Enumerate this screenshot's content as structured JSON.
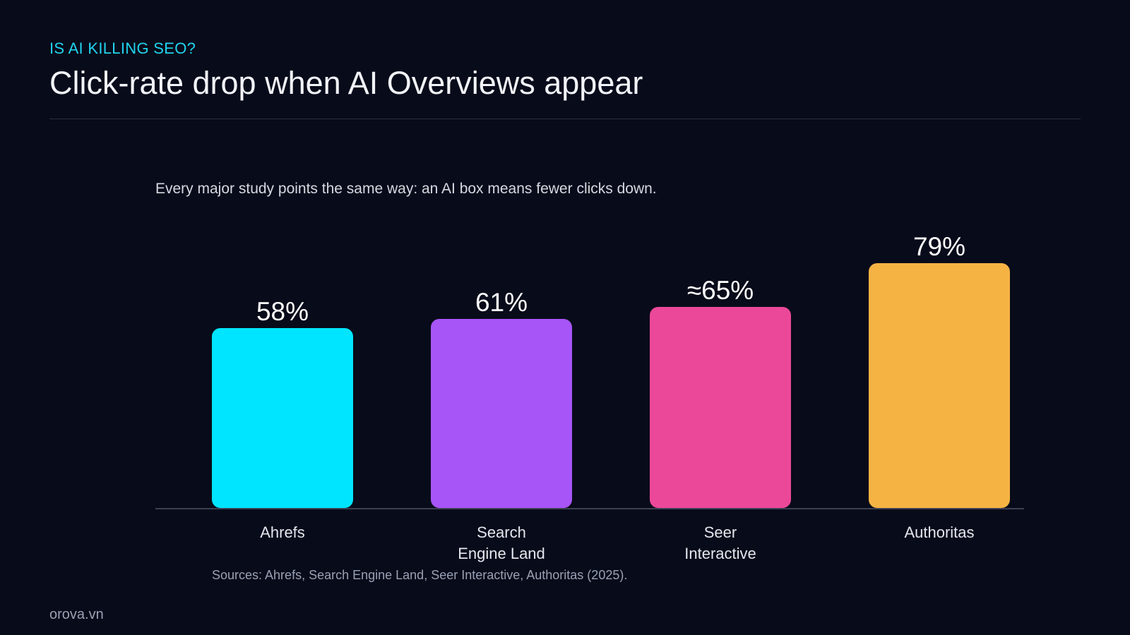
{
  "kicker": "IS AI KILLING SEO?",
  "title": "Click-rate drop when AI Overviews appear",
  "chart_data": {
    "type": "bar",
    "subtitle": "Every major study points the same way: an AI box means fewer clicks down.",
    "categories": [
      "Ahrefs",
      "Search\nEngine Land",
      "Seer\nInteractive",
      "Authoritas"
    ],
    "values": [
      58,
      61,
      65,
      79
    ],
    "value_labels": [
      "58%",
      "61%",
      "≈65%",
      "79%"
    ],
    "colors": [
      "#00e5ff",
      "#a855f7",
      "#ec4899",
      "#f5b344"
    ],
    "note": "Sources: Ahrefs, Search Engine Land, Seer Interactive, Authoritas (2025)."
  },
  "footer": "orova.vn"
}
